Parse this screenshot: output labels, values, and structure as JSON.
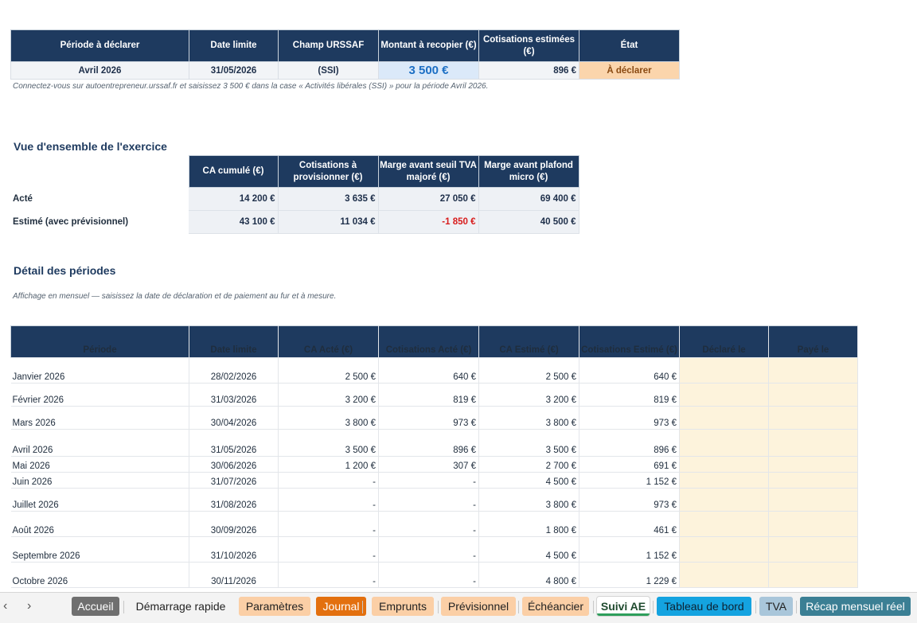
{
  "declaration": {
    "headers": [
      "Période à déclarer",
      "Date limite",
      "Champ URSSAF",
      "Montant à recopier (€)",
      "Cotisations estimées (€)",
      "État"
    ],
    "row": {
      "period": "Avril 2026",
      "deadline": "31/05/2026",
      "field": "(SSI)",
      "amount": "3 500 €",
      "contributions": "896 €",
      "status": "À déclarer"
    },
    "note": "Connectez-vous sur autoentrepreneur.urssaf.fr et saisissez 3 500 € dans la case « Activités libérales (SSI) » pour la période Avril 2026."
  },
  "overview": {
    "title": "Vue d'ensemble de l'exercice",
    "headers": [
      "CA cumulé (€)",
      "Cotisations à provisionner (€)",
      "Marge avant seuil TVA majoré (€)",
      "Marge avant plafond micro (€)"
    ],
    "rows": [
      {
        "label": "Acté",
        "values": [
          "14 200 €",
          "3 635 €",
          "27 050 €",
          "69 400 €"
        ]
      },
      {
        "label": "Estimé (avec prévisionnel)",
        "values": [
          "43 100 €",
          "11 034 €",
          "-1 850 €",
          "40 500 €"
        ]
      }
    ]
  },
  "periods": {
    "title": "Détail des périodes",
    "note": "Affichage en mensuel — saisissez la date de déclaration et de paiement au fur et à mesure.",
    "headers": [
      "Période",
      "Date limite",
      "CA Acté (€)",
      "Cotisations Acté (€)",
      "CA Estimé (€)",
      "Cotisations Estimé (€)",
      "Déclaré le",
      "Payé le"
    ],
    "rows": [
      {
        "period": "Janvier 2026",
        "deadline": "28/02/2026",
        "ca_acte": "2 500 €",
        "cot_acte": "640 €",
        "ca_est": "2 500 €",
        "cot_est": "640 €"
      },
      {
        "period": "Février 2026",
        "deadline": "31/03/2026",
        "ca_acte": "3 200 €",
        "cot_acte": "819 €",
        "ca_est": "3 200 €",
        "cot_est": "819 €"
      },
      {
        "period": "Mars 2026",
        "deadline": "30/04/2026",
        "ca_acte": "3 800 €",
        "cot_acte": "973 €",
        "ca_est": "3 800 €",
        "cot_est": "973 €"
      },
      {
        "period": "Avril 2026",
        "deadline": "31/05/2026",
        "ca_acte": "3 500 €",
        "cot_acte": "896 €",
        "ca_est": "3 500 €",
        "cot_est": "896 €"
      },
      {
        "period": "Mai 2026",
        "deadline": "30/06/2026",
        "ca_acte": "1 200 €",
        "cot_acte": "307 €",
        "ca_est": "2 700 €",
        "cot_est": "691 €"
      },
      {
        "period": "Juin 2026",
        "deadline": "31/07/2026",
        "ca_acte": "-",
        "cot_acte": "-",
        "ca_est": "4 500 €",
        "cot_est": "1 152 €"
      },
      {
        "period": "Juillet 2026",
        "deadline": "31/08/2026",
        "ca_acte": "-",
        "cot_acte": "-",
        "ca_est": "3 800 €",
        "cot_est": "973 €"
      },
      {
        "period": "Août 2026",
        "deadline": "30/09/2026",
        "ca_acte": "-",
        "cot_acte": "-",
        "ca_est": "1 800 €",
        "cot_est": "461 €"
      },
      {
        "period": "Septembre 2026",
        "deadline": "31/10/2026",
        "ca_acte": "-",
        "cot_acte": "-",
        "ca_est": "4 500 €",
        "cot_est": "1 152 €"
      },
      {
        "period": "Octobre 2026",
        "deadline": "30/11/2026",
        "ca_acte": "-",
        "cot_acte": "-",
        "ca_est": "4 800 €",
        "cot_est": "1 229 €"
      }
    ]
  },
  "tabs": {
    "prev_icon": "chevron-left-icon",
    "next_icon": "chevron-right-icon",
    "items": [
      {
        "label": "Accueil",
        "bg": "#6f6f6f",
        "fg": "#ffffff"
      },
      {
        "label": "Démarrage rapide",
        "bg": "transparent",
        "fg": "#222222"
      },
      {
        "label": "Paramètres",
        "bg": "#fbcfa6",
        "fg": "#222222"
      },
      {
        "label": "Journal",
        "bg": "#e3700f",
        "fg": "#ffffff"
      },
      {
        "label": "Emprunts",
        "bg": "#fbcfa6",
        "fg": "#222222"
      },
      {
        "label": "Prévisionnel",
        "bg": "#fbcfa6",
        "fg": "#222222"
      },
      {
        "label": "Échéancier",
        "bg": "#fbcfa6",
        "fg": "#222222"
      },
      {
        "label": "Suivi AE",
        "bg": "#ffffff",
        "fg": "#1f4a2e"
      },
      {
        "label": "Tableau de bord",
        "bg": "#14a3e0",
        "fg": "#0d2233"
      },
      {
        "label": "TVA",
        "bg": "#a9c6da",
        "fg": "#222222"
      },
      {
        "label": "Récap mensuel réel",
        "bg": "#3b7f94",
        "fg": "#ffffff"
      }
    ]
  }
}
